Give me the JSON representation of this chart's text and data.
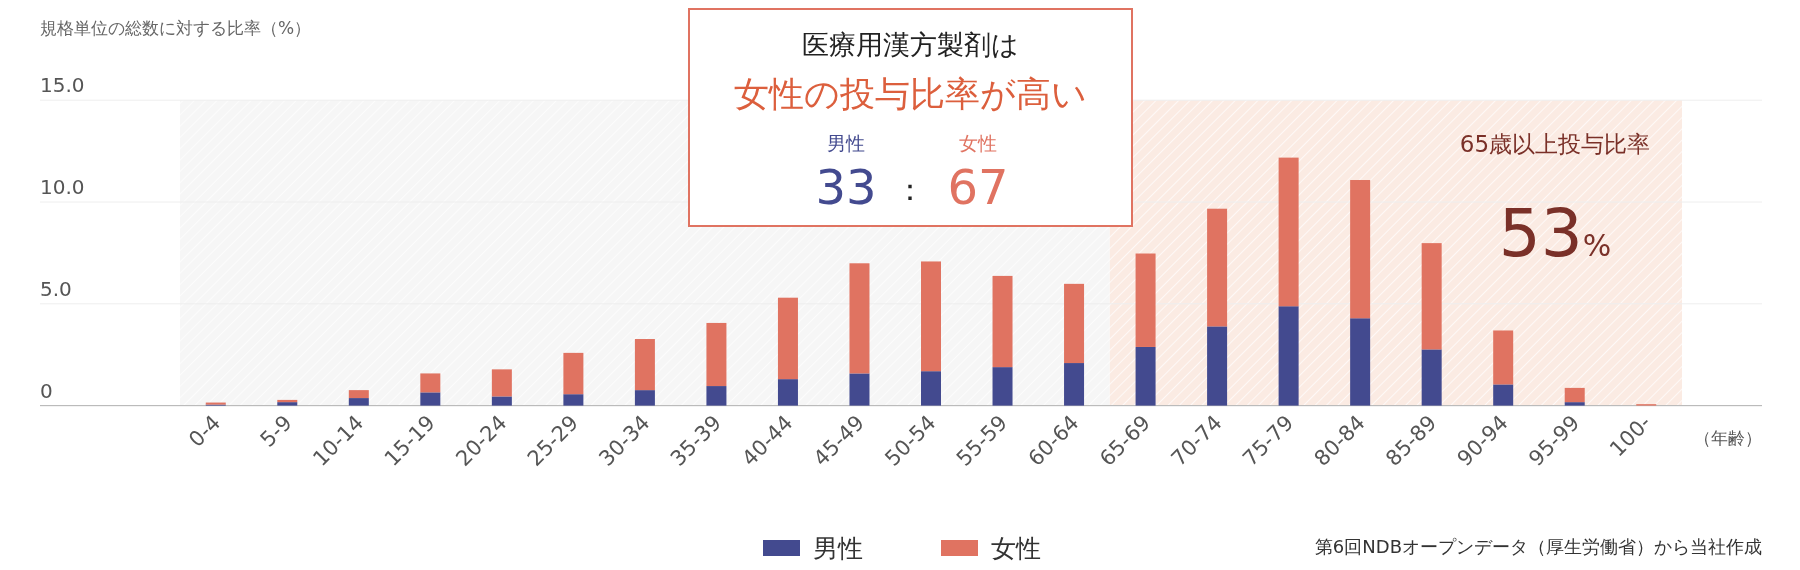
{
  "chart_data": {
    "type": "bar",
    "stacked": true,
    "title": "医療用漢方製剤は",
    "subtitle": "女性の投与比率が高い",
    "ylabel": "規格単位の総数に対する比率（%）",
    "xlabel": "（年齢）",
    "categories": [
      "0-4",
      "5-9",
      "10-14",
      "15-19",
      "20-24",
      "25-29",
      "30-34",
      "35-39",
      "40-44",
      "45-49",
      "50-54",
      "55-59",
      "60-64",
      "65-69",
      "70-74",
      "75-79",
      "80-84",
      "85-89",
      "90-94",
      "95-99",
      "100-"
    ],
    "series": [
      {
        "name": "男性",
        "color": "#434a8f",
        "values": [
          0.05,
          0.17,
          0.37,
          0.65,
          0.45,
          0.56,
          0.76,
          0.96,
          1.3,
          1.58,
          1.69,
          1.89,
          2.09,
          2.88,
          3.89,
          4.88,
          4.29,
          2.76,
          1.04,
          0.17,
          null
        ]
      },
      {
        "name": "女性",
        "color": "#e07361",
        "values": [
          0.1,
          0.11,
          0.39,
          0.93,
          1.33,
          2.03,
          2.51,
          3.1,
          4.0,
          5.41,
          5.39,
          4.48,
          3.89,
          4.59,
          5.78,
          7.3,
          6.79,
          5.22,
          2.65,
          0.7,
          0.07
        ]
      }
    ],
    "ylim": [
      0,
      15
    ],
    "yticks": [
      {
        "value": 0,
        "label": "0"
      },
      {
        "value": 5,
        "label": "5.0"
      },
      {
        "value": 10,
        "label": "10.0"
      },
      {
        "value": 15,
        "label": "15.0"
      }
    ],
    "grid": "y",
    "legend": "bottom",
    "bands": [
      {
        "axis": "x",
        "from": "0-4",
        "to": "60-64",
        "color": "#f6f6f6"
      },
      {
        "axis": "x",
        "from": "65-69",
        "to": "100-",
        "label": "65歳以上投与比率",
        "color": "#fbebe3"
      }
    ],
    "annotations": [
      "男性",
      "女性",
      "33",
      "：",
      "67",
      "53%",
      "第6回NDBオープンデータ（厚生労働省）から当社作成"
    ]
  }
}
